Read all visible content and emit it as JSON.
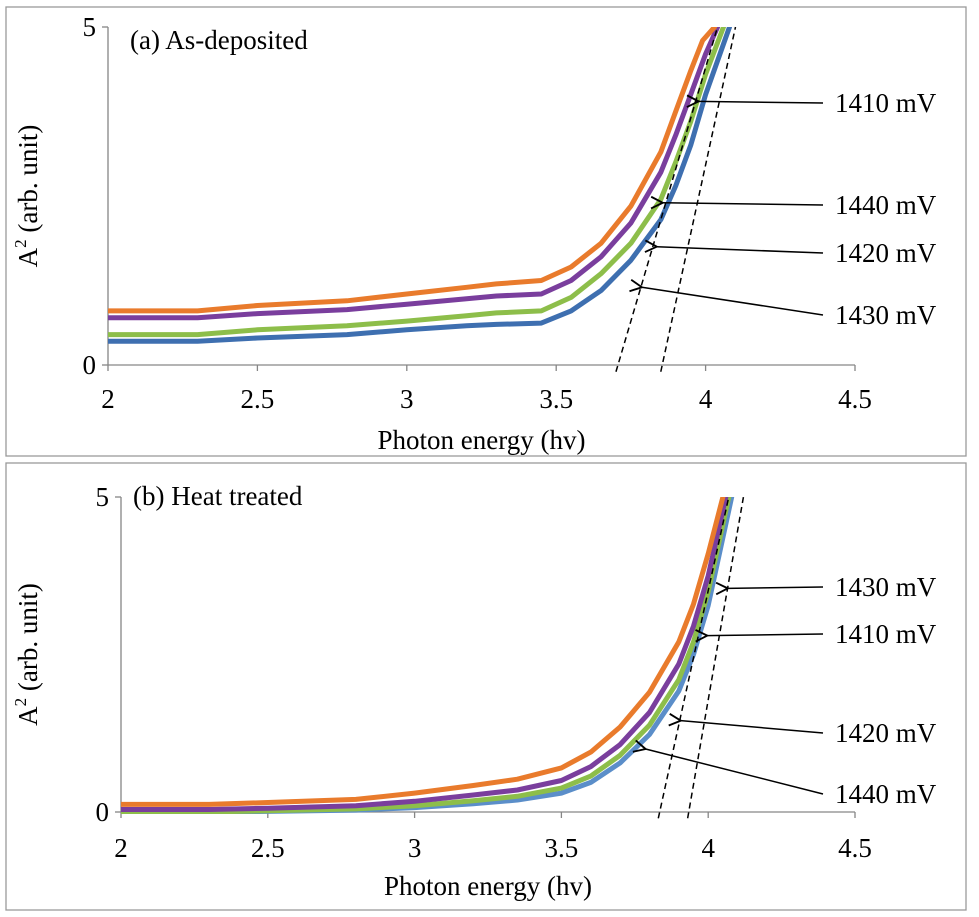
{
  "chart_data": [
    {
      "type": "line",
      "panel_label": "(a) As-deposited",
      "xlabel": "Photon energy (hv)",
      "ylabel_main": "A",
      "ylabel_sup": "2",
      "ylabel_rest": " (arb. unit)",
      "xlim": [
        2,
        4.5
      ],
      "ylim": [
        0,
        5
      ],
      "x_ticks": [
        2,
        2.5,
        3,
        3.5,
        4,
        4.5
      ],
      "x_tick_labels": [
        "2",
        "2.5",
        "3",
        "3.5",
        "4",
        "4.5"
      ],
      "y_ticks": [
        0,
        5
      ],
      "y_tick_labels": [
        "0",
        "5"
      ],
      "series": [
        {
          "name": "1410 mV",
          "color": "#E97B2C",
          "x": [
            2.0,
            2.3,
            2.5,
            2.8,
            3.0,
            3.2,
            3.3,
            3.45,
            3.55,
            3.65,
            3.75,
            3.85,
            3.9,
            3.95,
            3.99,
            4.03
          ],
          "y": [
            0.8,
            0.8,
            0.88,
            0.95,
            1.05,
            1.15,
            1.2,
            1.25,
            1.45,
            1.8,
            2.35,
            3.15,
            3.75,
            4.35,
            4.8,
            5.0
          ]
        },
        {
          "name": "1440 mV",
          "color": "#7A3E9D",
          "x": [
            2.0,
            2.3,
            2.5,
            2.8,
            3.0,
            3.2,
            3.3,
            3.45,
            3.55,
            3.65,
            3.75,
            3.85,
            3.9,
            3.95,
            4.0,
            4.04
          ],
          "y": [
            0.7,
            0.7,
            0.76,
            0.82,
            0.9,
            0.98,
            1.02,
            1.05,
            1.25,
            1.6,
            2.1,
            2.85,
            3.4,
            4.0,
            4.6,
            5.0
          ]
        },
        {
          "name": "1420 mV",
          "color": "#8DBE4A",
          "x": [
            2.0,
            2.3,
            2.5,
            2.8,
            3.0,
            3.2,
            3.3,
            3.45,
            3.55,
            3.65,
            3.75,
            3.85,
            3.9,
            3.95,
            4.0,
            4.06
          ],
          "y": [
            0.45,
            0.45,
            0.52,
            0.58,
            0.65,
            0.73,
            0.77,
            0.8,
            1.0,
            1.35,
            1.8,
            2.45,
            3.0,
            3.6,
            4.3,
            5.0
          ]
        },
        {
          "name": "1430 mV",
          "color": "#3E6FB0",
          "x": [
            2.0,
            2.3,
            2.5,
            2.8,
            3.0,
            3.2,
            3.3,
            3.45,
            3.55,
            3.65,
            3.75,
            3.85,
            3.9,
            3.95,
            4.0,
            4.08
          ],
          "y": [
            0.35,
            0.35,
            0.4,
            0.45,
            0.52,
            0.58,
            0.6,
            0.62,
            0.8,
            1.1,
            1.55,
            2.15,
            2.65,
            3.25,
            4.0,
            5.0
          ]
        }
      ],
      "tangent_lines": [
        {
          "x1": 3.7,
          "y1": -0.1,
          "x2": 4.04,
          "y2": 5.0
        },
        {
          "x1": 3.85,
          "y1": -0.1,
          "x2": 4.1,
          "y2": 5.0
        }
      ],
      "annotations": [
        {
          "text": "1410 mV",
          "x": 3.97,
          "y": 3.9
        },
        {
          "text": "1440 mV",
          "x": 3.85,
          "y": 2.4
        },
        {
          "text": "1420 mV",
          "x": 3.83,
          "y": 1.75
        },
        {
          "text": "1430 mV",
          "x": 3.78,
          "y": 1.15
        }
      ]
    },
    {
      "type": "line",
      "panel_label": "(b) Heat treated",
      "xlabel": "Photon energy (hv)",
      "ylabel_main": "A",
      "ylabel_sup": "2",
      "ylabel_rest": " (arb. unit)",
      "xlim": [
        2,
        4.5
      ],
      "ylim": [
        0,
        5
      ],
      "x_ticks": [
        2,
        2.5,
        3,
        3.5,
        4,
        4.5
      ],
      "x_tick_labels": [
        "2",
        "2.5",
        "3",
        "3.5",
        "4",
        "4.5"
      ],
      "y_ticks": [
        0,
        5
      ],
      "y_tick_labels": [
        "0",
        "5"
      ],
      "series": [
        {
          "name": "1440 mV",
          "color": "#E97B2C",
          "x": [
            2.0,
            2.3,
            2.5,
            2.8,
            3.0,
            3.2,
            3.35,
            3.5,
            3.6,
            3.7,
            3.8,
            3.9,
            3.95,
            4.0,
            4.05
          ],
          "y": [
            0.12,
            0.12,
            0.15,
            0.2,
            0.3,
            0.42,
            0.52,
            0.7,
            0.95,
            1.35,
            1.9,
            2.7,
            3.3,
            4.1,
            5.0
          ]
        },
        {
          "name": "1420 mV",
          "color": "#7A3E9D",
          "x": [
            2.0,
            2.3,
            2.5,
            2.8,
            3.0,
            3.2,
            3.35,
            3.5,
            3.6,
            3.7,
            3.8,
            3.9,
            3.95,
            4.0,
            4.06
          ],
          "y": [
            0.04,
            0.04,
            0.06,
            0.1,
            0.17,
            0.27,
            0.35,
            0.5,
            0.72,
            1.07,
            1.58,
            2.35,
            2.95,
            3.75,
            5.0
          ]
        },
        {
          "name": "1410 mV",
          "color": "#8DBE4A",
          "x": [
            2.0,
            2.3,
            2.5,
            2.8,
            3.0,
            3.2,
            3.35,
            3.5,
            3.6,
            3.7,
            3.8,
            3.9,
            3.95,
            4.0,
            4.07
          ],
          "y": [
            0.0,
            0.0,
            0.02,
            0.05,
            0.1,
            0.18,
            0.25,
            0.38,
            0.57,
            0.9,
            1.38,
            2.1,
            2.7,
            3.5,
            5.0
          ]
        },
        {
          "name": "1430 mV",
          "color": "#5B8EC9",
          "x": [
            2.0,
            2.3,
            2.5,
            2.8,
            3.0,
            3.2,
            3.35,
            3.5,
            3.6,
            3.7,
            3.8,
            3.9,
            3.95,
            4.0,
            4.08
          ],
          "y": [
            0.0,
            0.0,
            0.01,
            0.03,
            0.07,
            0.13,
            0.19,
            0.3,
            0.47,
            0.78,
            1.23,
            1.92,
            2.5,
            3.28,
            5.0
          ]
        }
      ],
      "tangent_lines": [
        {
          "x1": 3.83,
          "y1": -0.1,
          "x2": 4.07,
          "y2": 5.0
        },
        {
          "x1": 3.93,
          "y1": -0.1,
          "x2": 4.12,
          "y2": 5.0
        }
      ],
      "annotations": [
        {
          "text": "1430 mV",
          "x": 4.06,
          "y": 3.55
        },
        {
          "text": "1410 mV",
          "x": 3.99,
          "y": 2.8
        },
        {
          "text": "1420 mV",
          "x": 3.9,
          "y": 1.45
        },
        {
          "text": "1440 mV",
          "x": 3.78,
          "y": 1.0
        }
      ]
    }
  ]
}
